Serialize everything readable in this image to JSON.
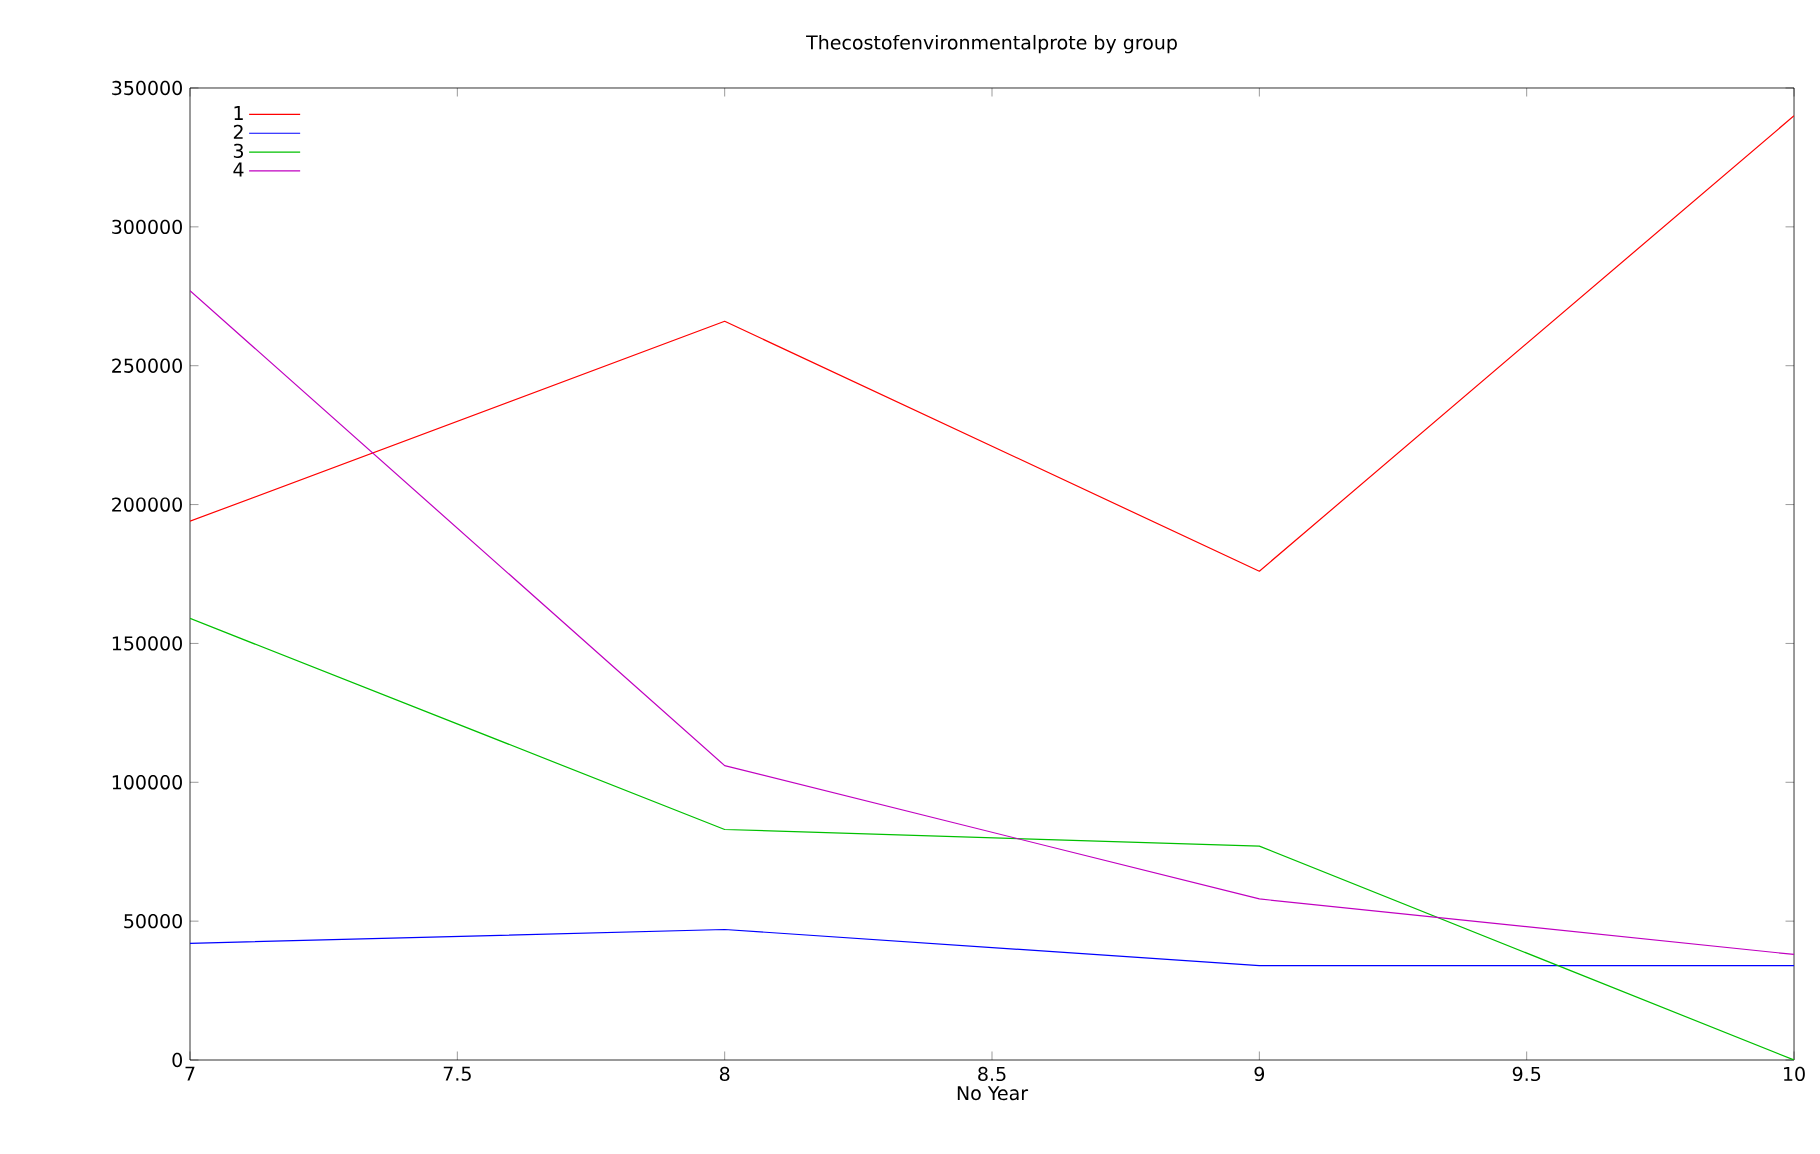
{
  "chart_data": {
    "type": "line",
    "title": "Thecostofenvironmentalprote by group",
    "xlabel": "No Year",
    "x": [
      7,
      8,
      9,
      10
    ],
    "series": [
      {
        "name": "1",
        "color": "#ff0000",
        "values": [
          194000,
          266000,
          176000,
          340000
        ]
      },
      {
        "name": "2",
        "color": "#0000ff",
        "values": [
          42000,
          47000,
          34000,
          34000
        ]
      },
      {
        "name": "3",
        "color": "#00c000",
        "values": [
          159000,
          83000,
          77000,
          0
        ]
      },
      {
        "name": "4",
        "color": "#c000c0",
        "values": [
          277000,
          106000,
          58000,
          38000
        ]
      }
    ],
    "xlim": [
      7,
      10
    ],
    "xticks": [
      7,
      7.5,
      8,
      8.5,
      9,
      9.5,
      10
    ],
    "ylim": [
      0,
      350000
    ],
    "yticks": [
      0,
      50000,
      100000,
      150000,
      200000,
      250000,
      300000,
      350000
    ],
    "grid": false,
    "legend": "top left",
    "marker": "none",
    "line_style": "solid"
  }
}
